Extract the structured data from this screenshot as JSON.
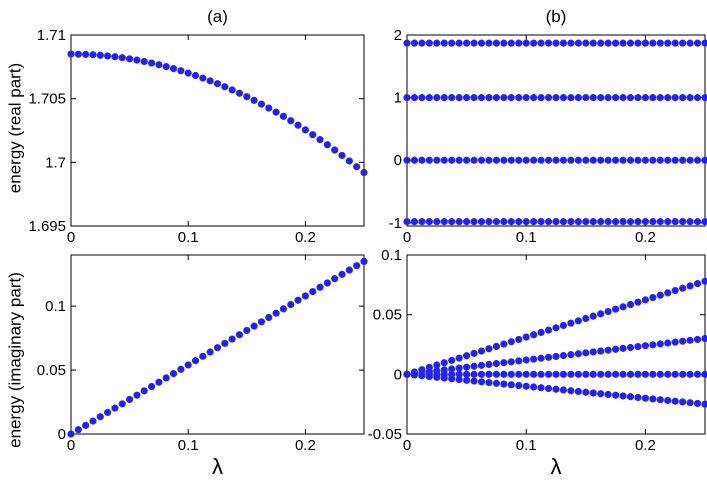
{
  "chart_data": [
    {
      "type": "scatter",
      "panel_label": "(a)",
      "ylabel": "energy (real part)",
      "xlabel": "",
      "xlim": [
        0,
        0.25
      ],
      "ylim": [
        1.695,
        1.71
      ],
      "xticks": [
        0,
        0.1,
        0.2
      ],
      "xtick_labels": [
        "0",
        "0.1",
        "0.2"
      ],
      "yticks": [
        1.695,
        1.7,
        1.705,
        1.71
      ],
      "ytick_labels": [
        "1.695",
        "1.7",
        "1.705",
        "1.71"
      ],
      "grid": false,
      "x_points": 41,
      "series": [
        {
          "x": [
            0,
            0.25
          ],
          "y": [
            1.7085,
            1.6992
          ],
          "shape": "quadratic",
          "color": "#0000ff"
        }
      ]
    },
    {
      "type": "scatter",
      "panel_label": "(b)",
      "ylabel": "",
      "xlabel": "",
      "xlim": [
        0,
        0.25
      ],
      "ylim": [
        -1.05,
        2
      ],
      "xticks": [
        0,
        0.1,
        0.2
      ],
      "xtick_labels": [
        "0",
        "0.1",
        "0.2"
      ],
      "yticks": [
        -1,
        0,
        1,
        2
      ],
      "ytick_labels": [
        "-1",
        "0",
        "1",
        "2"
      ],
      "grid": false,
      "x_points": 41,
      "series": [
        {
          "x": [
            0,
            0.25
          ],
          "y": [
            1.87,
            1.87
          ],
          "shape": "linear",
          "color": "#0000ff"
        },
        {
          "x": [
            0,
            0.25
          ],
          "y": [
            1.0,
            1.0
          ],
          "shape": "linear",
          "color": "#0000ff"
        },
        {
          "x": [
            0,
            0.25
          ],
          "y": [
            0.0,
            0.0
          ],
          "shape": "linear",
          "color": "#0000ff"
        },
        {
          "x": [
            0,
            0.25
          ],
          "y": [
            -0.98,
            -0.98
          ],
          "shape": "linear",
          "color": "#0000ff"
        }
      ]
    },
    {
      "type": "scatter",
      "panel_label": "",
      "ylabel": "energy (imaginary part)",
      "xlabel": "λ",
      "xlim": [
        0,
        0.25
      ],
      "ylim": [
        0,
        0.14
      ],
      "xticks": [
        0,
        0.1,
        0.2
      ],
      "xtick_labels": [
        "0",
        "0.1",
        "0.2"
      ],
      "yticks": [
        0,
        0.05,
        0.1
      ],
      "ytick_labels": [
        "0",
        "0.05",
        "0.1"
      ],
      "grid": false,
      "x_points": 41,
      "series": [
        {
          "x": [
            0,
            0.25
          ],
          "y": [
            0.0,
            0.135
          ],
          "shape": "linear",
          "color": "#0000ff"
        }
      ]
    },
    {
      "type": "scatter",
      "panel_label": "",
      "ylabel": "",
      "xlabel": "λ",
      "xlim": [
        0,
        0.25
      ],
      "ylim": [
        -0.05,
        0.1
      ],
      "xticks": [
        0,
        0.1,
        0.2
      ],
      "xtick_labels": [
        "0",
        "0.1",
        "0.2"
      ],
      "yticks": [
        -0.05,
        0,
        0.05,
        0.1
      ],
      "ytick_labels": [
        "-0.05",
        "0",
        "0.05",
        "0.1"
      ],
      "grid": false,
      "x_points": 41,
      "series": [
        {
          "x": [
            0,
            0.25
          ],
          "y": [
            0.0,
            0.078
          ],
          "shape": "linear",
          "color": "#0000ff"
        },
        {
          "x": [
            0,
            0.25
          ],
          "y": [
            0.0,
            0.03
          ],
          "shape": "linear",
          "color": "#0000ff"
        },
        {
          "x": [
            0,
            0.25
          ],
          "y": [
            0.0,
            0.0
          ],
          "shape": "linear",
          "color": "#0000ff"
        },
        {
          "x": [
            0,
            0.25
          ],
          "y": [
            0.0,
            -0.025
          ],
          "shape": "linear",
          "color": "#0000ff"
        }
      ]
    }
  ]
}
